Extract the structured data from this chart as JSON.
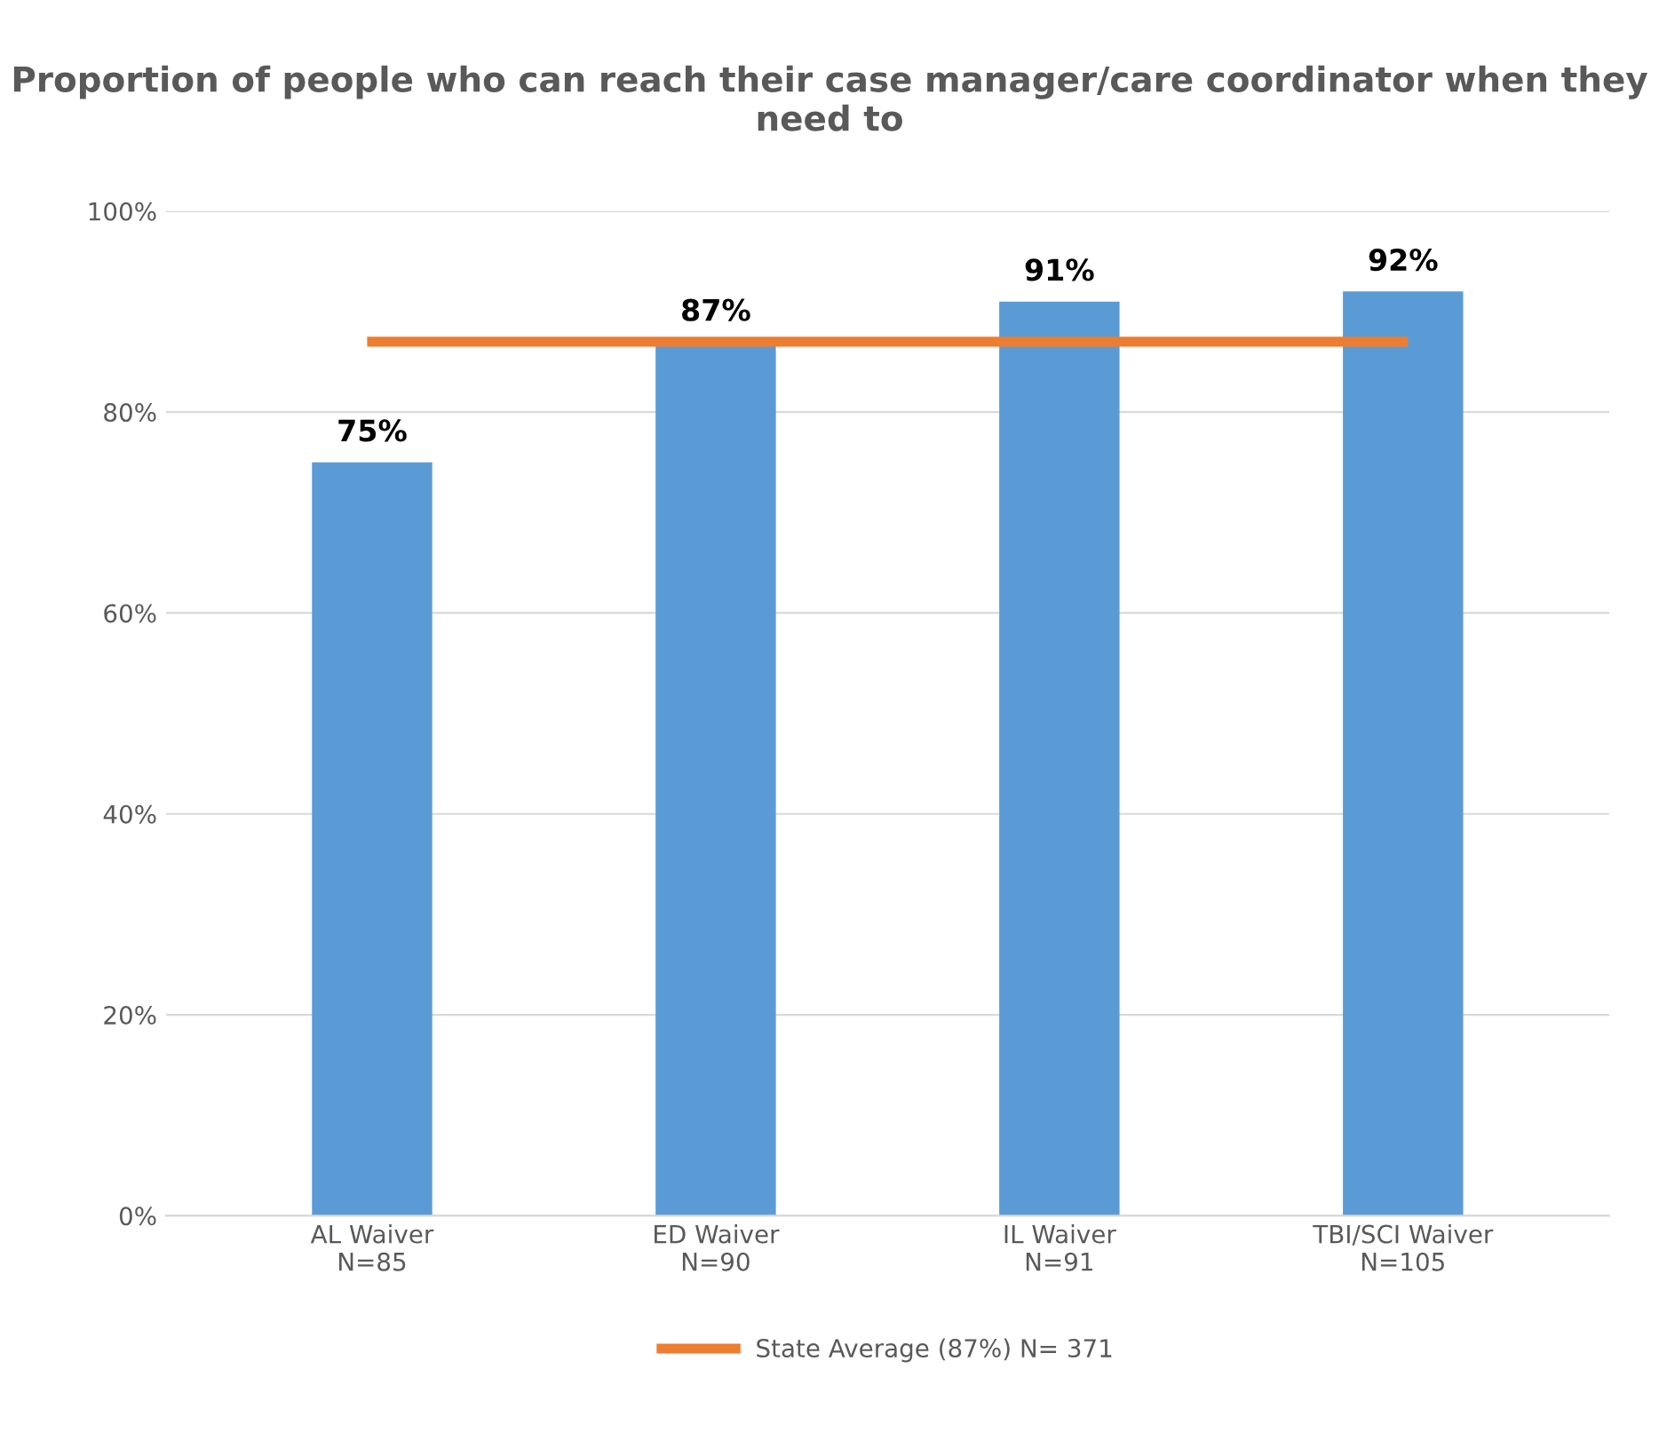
{
  "chart_data": {
    "type": "bar",
    "title": "Proportion of people who can reach their case manager/care coordinator when they need to",
    "categories": [
      "AL Waiver\nN=85",
      "ED Waiver\nN=90",
      "IL Waiver\nN=91",
      "TBI/SCI Waiver\nN=105"
    ],
    "series": [
      {
        "color": "#5b9bd5",
        "values": [
          75,
          87,
          91,
          92
        ],
        "value_labels": [
          "75%",
          "87%",
          "91%",
          "92%"
        ]
      },
      {
        "type": "line",
        "name": "State Average (87%) N= 371",
        "color": "#ed7d31",
        "values": [
          87,
          87,
          87,
          87
        ]
      }
    ],
    "ylim": [
      0,
      100
    ],
    "yticks": [
      {
        "value": 0,
        "label": "0%"
      },
      {
        "value": 20,
        "label": "20%"
      },
      {
        "value": 40,
        "label": "40%"
      },
      {
        "value": 60,
        "label": "60%"
      },
      {
        "value": 80,
        "label": "80%"
      },
      {
        "value": 100,
        "label": "100%"
      }
    ],
    "grid": "y",
    "legend": "bottom",
    "marker": "none"
  }
}
